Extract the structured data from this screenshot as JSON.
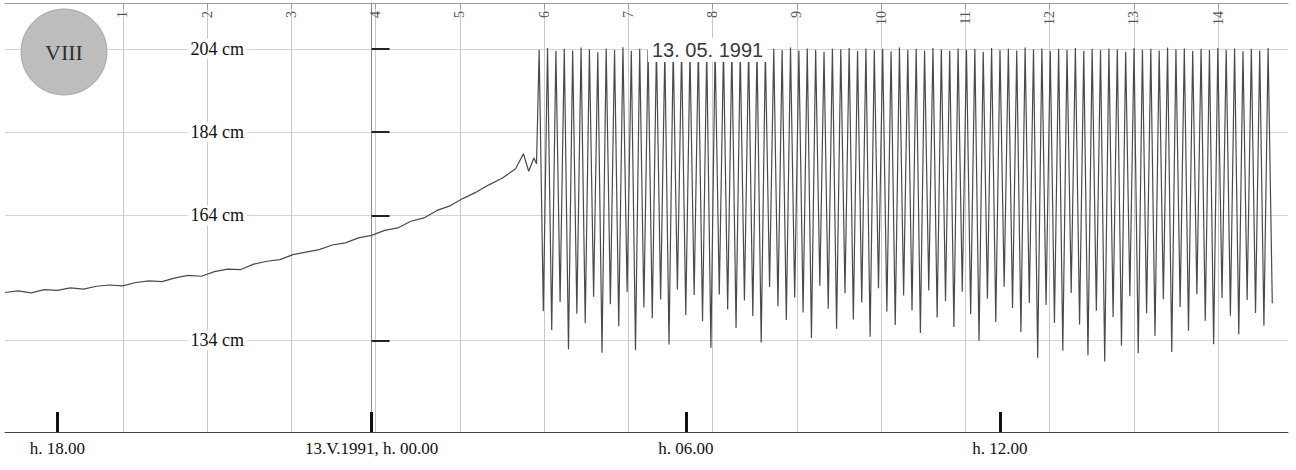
{
  "chart_data": {
    "type": "line",
    "title": "VIII",
    "annotations": [
      "13. 05. 1991"
    ],
    "color": "#4a4a4a",
    "x": [
      -7,
      -6.75,
      -6.5,
      -6.25,
      -6,
      -5.75,
      -5.5,
      -5.25,
      -5,
      -4.75,
      -4.5,
      -4.25,
      -4,
      -3.75,
      -3.5,
      -3.25,
      -3,
      -2.75,
      -2.5,
      -2.25,
      -2,
      -1.75,
      -1.5,
      -1.25,
      -1,
      -0.75,
      -0.5,
      -0.25,
      0,
      0.25,
      0.5,
      0.75,
      1,
      1.25,
      1.5,
      1.75,
      2,
      2.25,
      2.5,
      2.75,
      2.9,
      3,
      3.1,
      3.15,
      3.2,
      3.28,
      3.36,
      3.44,
      3.52,
      3.6,
      3.68,
      3.76,
      3.84,
      3.92,
      4,
      4.08,
      4.16,
      4.24,
      4.32,
      4.4,
      4.48,
      4.56,
      4.64,
      4.72,
      4.8,
      4.88,
      4.96,
      5.04,
      5.12,
      5.2,
      5.28,
      5.36,
      5.44,
      5.52,
      5.6,
      5.68,
      5.76,
      5.84,
      5.92,
      6,
      6.08,
      6.16,
      6.24,
      6.32,
      6.4,
      6.48,
      6.56,
      6.64,
      6.72,
      6.8,
      6.88,
      6.96,
      7.04,
      7.12,
      7.2,
      7.28,
      7.36,
      7.44,
      7.52,
      7.6,
      7.68,
      7.76,
      7.84,
      7.92,
      8,
      8.08,
      8.16,
      8.24,
      8.32,
      8.4,
      8.48,
      8.56,
      8.64,
      8.72,
      8.8,
      8.88,
      8.96,
      9.04,
      9.12,
      9.2,
      9.28,
      9.36,
      9.44,
      9.52,
      9.6,
      9.68,
      9.76,
      9.84,
      9.92,
      10,
      10.08,
      10.16,
      10.24,
      10.32,
      10.4,
      10.48,
      10.56,
      10.64,
      10.72,
      10.8,
      10.88,
      10.96,
      11.04,
      11.12,
      11.2,
      11.28,
      11.36,
      11.44,
      11.52,
      11.6,
      11.68,
      11.76,
      11.84,
      11.92,
      12,
      12.08,
      12.16,
      12.24,
      12.32,
      12.4,
      12.48,
      12.56,
      12.64,
      12.72,
      12.8,
      12.88,
      12.96,
      13.04,
      13.12,
      13.2,
      13.28,
      13.36,
      13.44,
      13.52,
      13.6,
      13.68,
      13.76,
      13.84,
      13.92,
      14,
      14.08,
      14.16,
      14.24,
      14.32,
      14.4,
      14.48,
      14.56,
      14.64,
      14.72,
      14.8,
      14.88,
      14.96,
      15.04,
      15.12,
      15.2,
      15.28,
      15.36,
      15.44,
      15.52,
      15.6,
      15.68,
      15.76,
      15.84,
      15.92,
      16,
      16.08,
      16.16,
      16.24,
      16.32,
      16.4,
      16.48,
      16.56,
      16.64,
      16.72,
      16.8,
      16.88,
      16.96,
      17.04,
      17.12,
      17.2
    ],
    "values": [
      145.5,
      145.9,
      145.4,
      146.2,
      146.0,
      146.6,
      146.3,
      147.0,
      147.3,
      147.1,
      147.9,
      148.3,
      148.1,
      149.0,
      149.6,
      149.4,
      150.5,
      151.1,
      151.0,
      152.3,
      153.0,
      153.4,
      154.6,
      155.2,
      155.8,
      156.9,
      157.4,
      158.6,
      159.2,
      160.4,
      161.0,
      162.6,
      163.4,
      165.2,
      166.3,
      168.1,
      169.6,
      171.4,
      173.0,
      175.2,
      178.8,
      174.6,
      177.8,
      176.4,
      203.8,
      141.0,
      204.2,
      136.5,
      203.5,
      143.2,
      204.0,
      131.8,
      203.6,
      140.4,
      204.3,
      138.1,
      203.9,
      144.5,
      203.2,
      131.0,
      204.1,
      142.7,
      203.7,
      137.4,
      204.4,
      145.6,
      203.5,
      131.6,
      204.0,
      141.9,
      203.8,
      139.3,
      204.2,
      143.8,
      203.4,
      133.0,
      204.1,
      146.2,
      203.9,
      140.1,
      203.3,
      144.9,
      204.0,
      138.6,
      203.6,
      132.2,
      204.3,
      145.0,
      203.8,
      141.4,
      204.1,
      137.0,
      203.5,
      143.6,
      204.2,
      139.8,
      203.9,
      133.5,
      203.4,
      146.8,
      204.0,
      142.2,
      203.7,
      138.9,
      204.3,
      144.3,
      203.6,
      140.7,
      204.1,
      134.6,
      203.8,
      147.1,
      203.3,
      141.6,
      204.0,
      136.8,
      203.9,
      145.3,
      204.2,
      139.0,
      203.5,
      143.1,
      204.1,
      134.9,
      203.7,
      146.5,
      204.0,
      140.9,
      203.4,
      137.7,
      204.3,
      144.8,
      203.8,
      141.2,
      204.0,
      135.8,
      203.6,
      146.0,
      204.2,
      139.5,
      203.9,
      143.4,
      203.5,
      137.2,
      204.1,
      145.7,
      203.8,
      140.3,
      204.0,
      133.9,
      203.3,
      144.0,
      204.2,
      138.4,
      203.7,
      146.9,
      204.0,
      141.8,
      203.6,
      136.0,
      204.3,
      143.0,
      203.9,
      129.8,
      204.1,
      142.5,
      203.4,
      138.2,
      204.0,
      131.5,
      203.8,
      145.4,
      204.2,
      137.8,
      203.5,
      130.4,
      204.0,
      141.1,
      203.7,
      128.9,
      204.1,
      139.6,
      203.9,
      132.7,
      203.3,
      144.6,
      204.2,
      130.9,
      203.8,
      140.5,
      204.0,
      135.1,
      203.6,
      143.9,
      204.3,
      131.2,
      203.9,
      142.0,
      204.1,
      136.3,
      203.5,
      145.1,
      204.0,
      138.7,
      203.7,
      133.1,
      204.2,
      144.2,
      203.8,
      139.9,
      204.1,
      135.5,
      203.4,
      143.7,
      204.0,
      140.6,
      203.6,
      137.5,
      204.2,
      142.9
    ],
    "xlim": [
      -7,
      17.5
    ],
    "xticks": [
      {
        "value": -6,
        "label": "h. 18.00"
      },
      {
        "value": 0,
        "label": "13.V.1991, h. 00.00"
      },
      {
        "value": 6,
        "label": "h. 06.00"
      },
      {
        "value": 12,
        "label": "h. 12.00"
      }
    ],
    "x2lim": [
      -0.4,
      14.83
    ],
    "x2ticks": [
      1,
      2,
      3,
      4,
      5,
      6,
      7,
      8,
      9,
      10,
      11,
      12,
      13,
      14
    ],
    "ylim": [
      112,
      215
    ],
    "yticks": [
      {
        "value": 134,
        "label": "134 cm"
      },
      {
        "value": 164,
        "label": "164 cm"
      },
      {
        "value": 184,
        "label": "184 cm"
      },
      {
        "value": 204,
        "label": "204 cm"
      }
    ],
    "grid": true
  }
}
